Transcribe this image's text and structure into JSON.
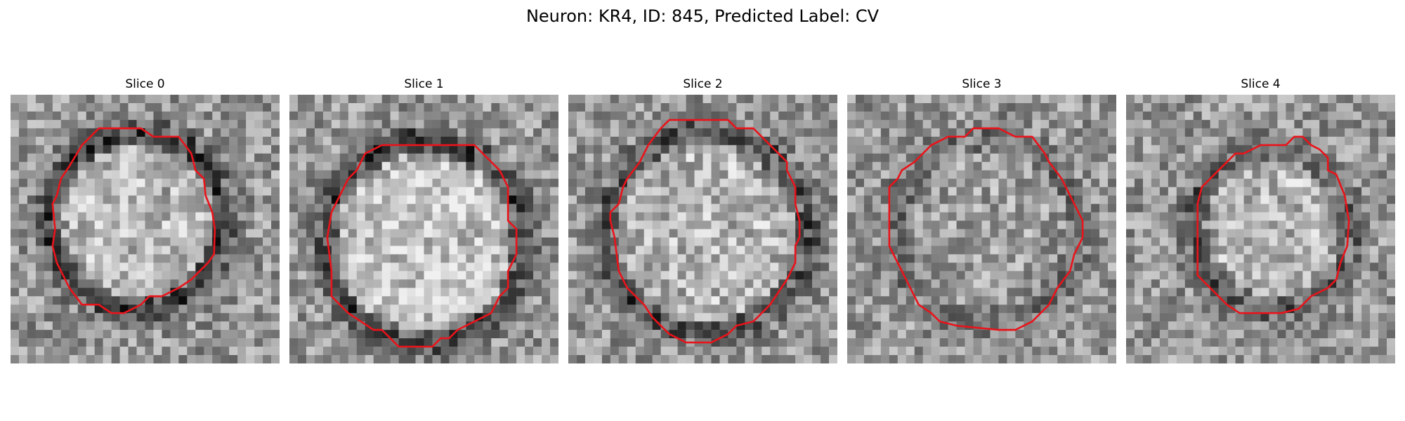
{
  "figure": {
    "title": "Neuron: KR4, ID: 845, Predicted Label: CV",
    "overlay_color": "#e8141b",
    "colormap": "gray",
    "panels": [
      {
        "title": "Slice 0"
      },
      {
        "title": "Slice 1"
      },
      {
        "title": "Slice 2"
      },
      {
        "title": "Slice 3"
      },
      {
        "title": "Slice 4"
      }
    ]
  }
}
